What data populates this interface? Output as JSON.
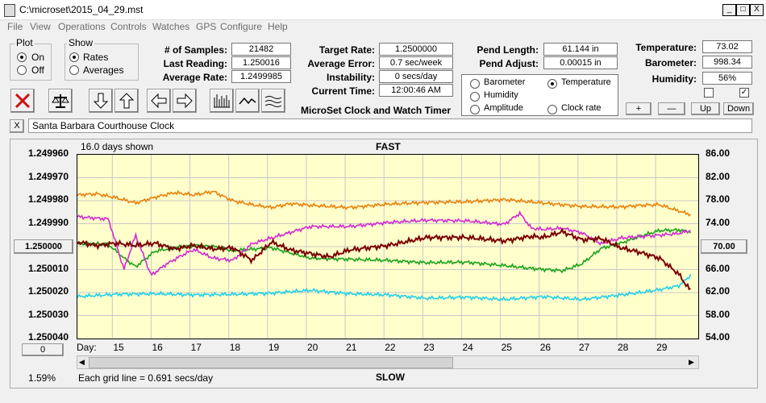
{
  "window": {
    "title": "C:\\microset\\2015_04_29.mst",
    "min": "_",
    "max": "□",
    "close": "X"
  },
  "menu": [
    "File",
    "View",
    "Operations",
    "Controls",
    "Watches",
    "GPS",
    "Configure",
    "Help"
  ],
  "plot_group": {
    "title": "Plot",
    "options": [
      "On",
      "Off"
    ],
    "selected": "On"
  },
  "show_group": {
    "title": "Show",
    "options": [
      "Rates",
      "Averages"
    ],
    "selected": "Rates"
  },
  "fields": {
    "samples": {
      "label": "# of Samples:",
      "value": "21482"
    },
    "last_reading": {
      "label": "Last Reading:",
      "value": "1.250016"
    },
    "avg_rate": {
      "label": "Average Rate:",
      "value": "1.2499985"
    },
    "target_rate": {
      "label": "Target Rate:",
      "value": "1.2500000"
    },
    "avg_error": {
      "label": "Average Error:",
      "value": "0.7 sec/week"
    },
    "instability": {
      "label": "Instability:",
      "value": "0 secs/day"
    },
    "current_time": {
      "label": "Current Time:",
      "value": "12:00:46 AM"
    },
    "pend_length": {
      "label": "Pend Length:",
      "value": "61.144 in"
    },
    "pend_adjust": {
      "label": "Pend Adjust:",
      "value": "0.00015 in"
    },
    "temperature": {
      "label": "Temperature:",
      "value": "73.02"
    },
    "barometer": {
      "label": "Barometer:",
      "value": "998.34"
    },
    "humidity": {
      "label": "Humidity:",
      "value": "56%"
    }
  },
  "app_caption": "MicroSet Clock and Watch Timer",
  "legend": {
    "items": [
      {
        "label": "Barometer",
        "color": "#e8820c",
        "selected": false
      },
      {
        "label": "Temperature",
        "color": "#1aa31a",
        "selected": true
      },
      {
        "label": "Humidity",
        "color": "#d12ad1",
        "selected": false
      },
      {
        "label": "Amplitude",
        "color": "#22d0e8",
        "selected": false
      },
      {
        "label": "Clock rate",
        "color": "#000000",
        "selected": false
      }
    ]
  },
  "small_buttons": {
    "plus": "+",
    "minus": "—",
    "up": "Up",
    "down": "Down"
  },
  "clock_name": "Santa Barbara Courthouse Clock",
  "clock_close": "X",
  "chart_header": {
    "days_shown": "16.0 days shown",
    "fast": "FAST",
    "slow": "SLOW",
    "grid_note": "Each grid line = 0.691 secs/day",
    "percent": "1.59%",
    "day_label": "Day:",
    "left_center_value": "1.250000",
    "right_center_value": "70.00",
    "offset_value": "0"
  },
  "chart_data": {
    "type": "line",
    "y_left_ticks": [
      "1.249960",
      "1.249970",
      "1.249980",
      "1.249990",
      "1.250000",
      "1.250010",
      "1.250020",
      "1.250030",
      "1.250040"
    ],
    "y_right_ticks": [
      "86.00",
      "82.00",
      "78.00",
      "74.00",
      "70.00",
      "66.00",
      "62.00",
      "58.00",
      "54.00"
    ],
    "ylim_left": [
      1.24996,
      1.25004
    ],
    "ylim_right": [
      54,
      86
    ],
    "x_days": [
      "15",
      "16",
      "17",
      "18",
      "19",
      "20",
      "21",
      "22",
      "23",
      "24",
      "25",
      "26",
      "27",
      "28",
      "29"
    ],
    "xlim": [
      14.0,
      30.0
    ],
    "grid": true,
    "series": [
      {
        "name": "Barometer",
        "color": "#e8820c",
        "axis": "right",
        "x": [
          14.0,
          14.5,
          15.0,
          15.5,
          16.0,
          16.5,
          17.0,
          17.5,
          18.0,
          18.5,
          19.0,
          19.5,
          20.0,
          21.0,
          22.0,
          23.0,
          24.0,
          25.0,
          26.0,
          27.0,
          28.0,
          28.5,
          29.0,
          29.5,
          29.8
        ],
        "y": [
          79.0,
          79.2,
          78.5,
          77.6,
          78.6,
          79.4,
          79.0,
          79.6,
          78.0,
          77.3,
          76.8,
          77.5,
          77.2,
          76.8,
          77.4,
          77.7,
          77.8,
          78.2,
          77.6,
          77.0,
          76.9,
          77.2,
          77.3,
          76.2,
          75.6
        ]
      },
      {
        "name": "Temperature",
        "color": "#1aa31a",
        "axis": "right",
        "x": [
          14.0,
          14.8,
          15.2,
          15.5,
          16.0,
          16.5,
          17.0,
          17.5,
          18.0,
          19.0,
          20.0,
          21.0,
          22.0,
          23.0,
          24.0,
          25.0,
          25.7,
          26.5,
          27.0,
          27.5,
          28.0,
          28.5,
          29.0,
          29.5,
          29.8
        ],
        "y": [
          70.5,
          70.4,
          68.0,
          66.5,
          69.2,
          69.8,
          70.2,
          70.0,
          69.3,
          69.8,
          68.0,
          67.8,
          67.6,
          67.2,
          67.3,
          66.7,
          66.2,
          65.8,
          67.0,
          69.7,
          70.6,
          71.8,
          72.8,
          72.9,
          72.6
        ]
      },
      {
        "name": "Humidity",
        "color": "#d12ad1",
        "axis": "right",
        "x": [
          14.0,
          14.8,
          15.2,
          15.5,
          15.9,
          16.3,
          16.7,
          17.0,
          17.5,
          18.0,
          18.5,
          19.0,
          20.0,
          21.0,
          22.0,
          23.0,
          24.0,
          25.0,
          25.4,
          25.7,
          26.0,
          26.5,
          27.0,
          27.5,
          28.0,
          29.0,
          29.5,
          29.8
        ],
        "y": [
          75.2,
          74.8,
          66.0,
          72.0,
          65.0,
          67.0,
          68.5,
          69.5,
          68.0,
          67.6,
          70.5,
          71.5,
          73.5,
          73.5,
          74.2,
          74.6,
          74.5,
          73.9,
          75.8,
          73.2,
          73.0,
          73.2,
          72.4,
          70.5,
          71.5,
          72.0,
          72.3,
          72.8
        ]
      },
      {
        "name": "Amplitude",
        "color": "#22d0e8",
        "axis": "right",
        "x": [
          14.0,
          15.0,
          16.0,
          17.0,
          18.0,
          19.0,
          20.0,
          21.0,
          22.0,
          23.0,
          24.0,
          25.0,
          26.0,
          27.0,
          28.0,
          28.5,
          29.0,
          29.5,
          29.8
        ],
        "y": [
          61.3,
          61.7,
          61.8,
          61.6,
          61.7,
          61.9,
          62.4,
          61.8,
          61.6,
          61.0,
          61.2,
          60.8,
          61.3,
          60.8,
          61.6,
          62.0,
          62.5,
          63.2,
          65.0
        ]
      },
      {
        "name": "Clock rate",
        "color": "#7a0000",
        "axis": "left",
        "x": [
          14.0,
          14.5,
          15.0,
          15.5,
          16.0,
          16.5,
          17.0,
          17.5,
          18.0,
          18.5,
          19.0,
          19.5,
          20.0,
          20.5,
          21.0,
          22.0,
          23.0,
          24.0,
          25.0,
          25.7,
          26.0,
          26.5,
          27.0,
          27.5,
          28.0,
          28.5,
          29.0,
          29.5,
          29.7,
          29.8
        ],
        "y": [
          1.249998,
          1.2499995,
          1.2499985,
          1.2499995,
          1.2499985,
          1.250001,
          1.2499995,
          1.250001,
          1.2500005,
          1.250006,
          1.249998,
          1.2500015,
          1.250003,
          1.2500045,
          1.2500015,
          1.2499995,
          1.249996,
          1.249996,
          1.2499975,
          1.2499955,
          1.249996,
          1.2499935,
          1.249997,
          1.2499965,
          1.2500005,
          1.2500025,
          1.250005,
          1.250012,
          1.250017,
          1.250019
        ]
      }
    ]
  }
}
